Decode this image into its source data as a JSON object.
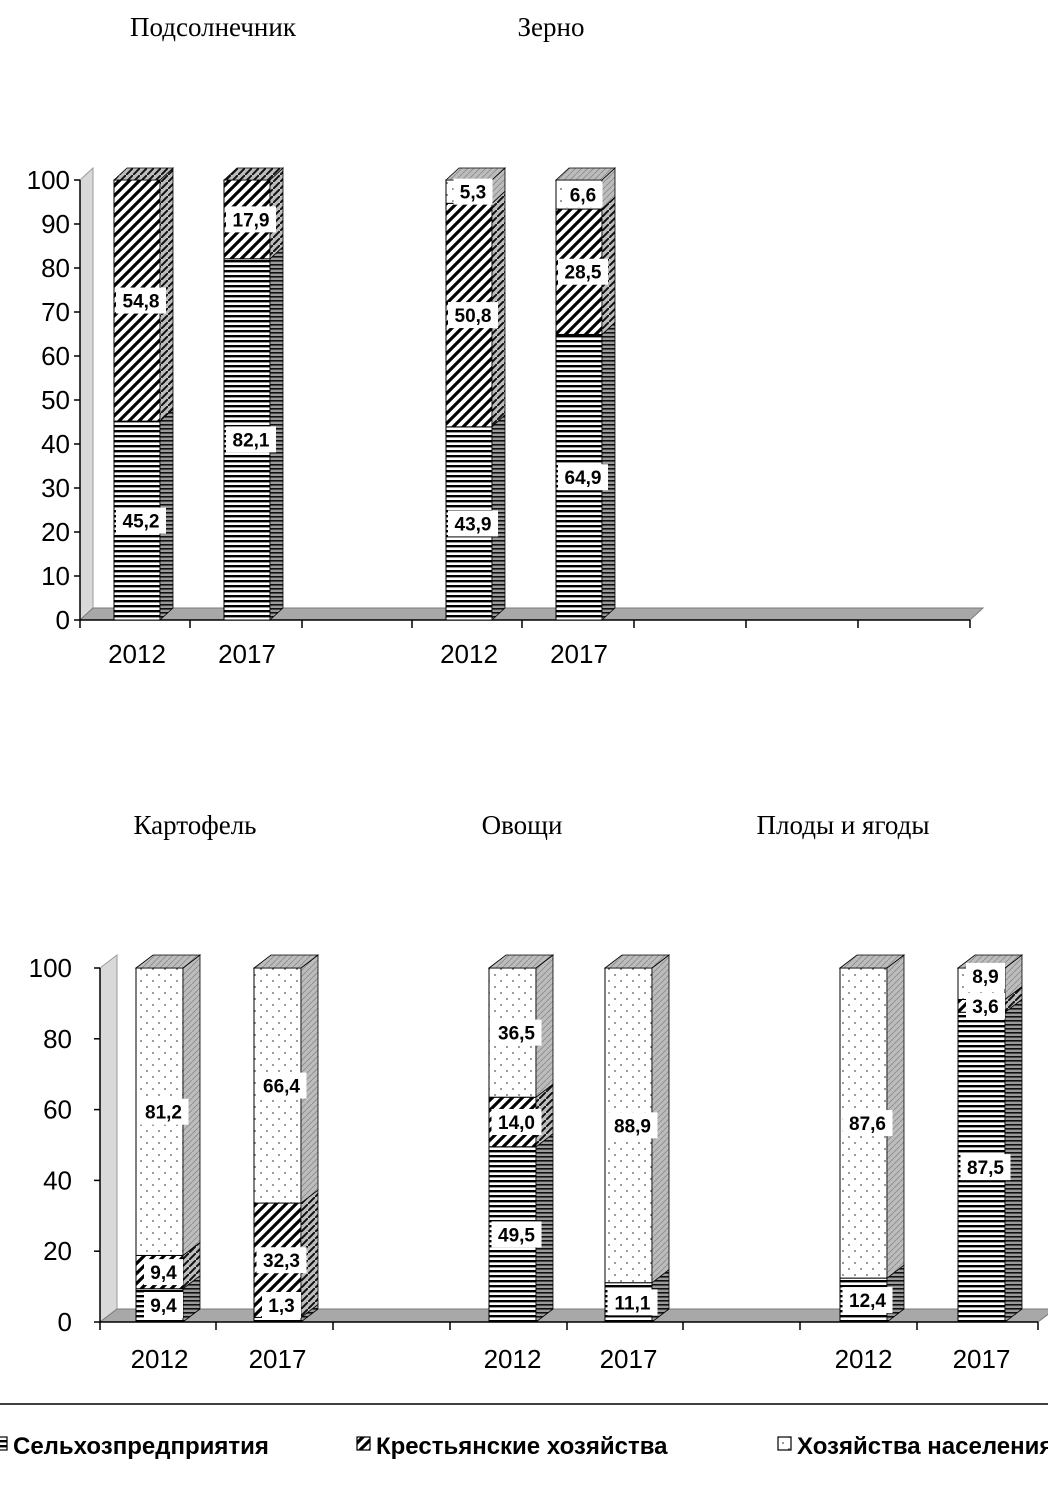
{
  "chart_data": {
    "type": "bar",
    "stacked": true,
    "three_d": true,
    "legend_position": "bottom",
    "legend": [
      {
        "name": "Сельхозпредприятия",
        "pattern": "horizontal-lines"
      },
      {
        "name": "Крестьянские хозяйства",
        "pattern": "diagonal-hatch"
      },
      {
        "name": "Хозяйства населения",
        "pattern": "dots"
      }
    ],
    "panels": [
      {
        "ylim": [
          0,
          100
        ],
        "yticks": [
          "0",
          "10",
          "20",
          "30",
          "40",
          "50",
          "60",
          "70",
          "80",
          "90",
          "100"
        ],
        "groups": [
          {
            "title": "Подсолнечник",
            "bars": [
              {
                "year": "2012",
                "segments": [
                  {
                    "series": "Сельхозпредприятия",
                    "value": 45.2,
                    "label": "45,2"
                  },
                  {
                    "series": "Крестьянские хозяйства",
                    "value": 54.8,
                    "label": "54,8"
                  },
                  {
                    "series": "Хозяйства населения",
                    "value": 0,
                    "label": ""
                  }
                ]
              },
              {
                "year": "2017",
                "segments": [
                  {
                    "series": "Сельхозпредприятия",
                    "value": 82.1,
                    "label": "82,1"
                  },
                  {
                    "series": "Крестьянские хозяйства",
                    "value": 17.9,
                    "label": "17,9"
                  },
                  {
                    "series": "Хозяйства населения",
                    "value": 0,
                    "label": ""
                  }
                ]
              }
            ]
          },
          {
            "title": "Зерно",
            "bars": [
              {
                "year": "2012",
                "segments": [
                  {
                    "series": "Сельхозпредприятия",
                    "value": 43.9,
                    "label": "43,9"
                  },
                  {
                    "series": "Крестьянские хозяйства",
                    "value": 50.8,
                    "label": "50,8"
                  },
                  {
                    "series": "Хозяйства населения",
                    "value": 5.3,
                    "label": "5,3"
                  }
                ]
              },
              {
                "year": "2017",
                "segments": [
                  {
                    "series": "Сельхозпредприятия",
                    "value": 64.9,
                    "label": "64,9"
                  },
                  {
                    "series": "Крестьянские хозяйства",
                    "value": 28.5,
                    "label": "28,5"
                  },
                  {
                    "series": "Хозяйства населения",
                    "value": 6.6,
                    "label": "6,6"
                  }
                ]
              }
            ]
          },
          {
            "title": "",
            "bars": [
              {
                "year": "",
                "segments": []
              },
              {
                "year": "",
                "segments": []
              }
            ]
          }
        ]
      },
      {
        "ylim": [
          0,
          100
        ],
        "yticks": [
          "0",
          "20",
          "40",
          "60",
          "80",
          "100"
        ],
        "groups": [
          {
            "title": "Картофель",
            "bars": [
              {
                "year": "2012",
                "segments": [
                  {
                    "series": "Сельхозпредприятия",
                    "value": 9.4,
                    "label": "9,4"
                  },
                  {
                    "series": "Крестьянские хозяйства",
                    "value": 9.4,
                    "label": "9,4"
                  },
                  {
                    "series": "Хозяйства населения",
                    "value": 81.2,
                    "label": "81,2"
                  }
                ]
              },
              {
                "year": "2017",
                "segments": [
                  {
                    "series": "Сельхозпредприятия",
                    "value": 1.3,
                    "label": "1,3"
                  },
                  {
                    "series": "Крестьянские хозяйства",
                    "value": 32.3,
                    "label": "32,3"
                  },
                  {
                    "series": "Хозяйства населения",
                    "value": 66.4,
                    "label": "66,4"
                  }
                ]
              }
            ]
          },
          {
            "title": "Овощи",
            "bars": [
              {
                "year": "2012",
                "segments": [
                  {
                    "series": "Сельхозпредприятия",
                    "value": 49.5,
                    "label": "49,5"
                  },
                  {
                    "series": "Крестьянские хозяйства",
                    "value": 14.0,
                    "label": "14,0"
                  },
                  {
                    "series": "Хозяйства населения",
                    "value": 36.5,
                    "label": "36,5"
                  }
                ]
              },
              {
                "year": "2017",
                "segments": [
                  {
                    "series": "Сельхозпредприятия",
                    "value": 11.1,
                    "label": "11,1"
                  },
                  {
                    "series": "Крестьянские хозяйства",
                    "value": 0,
                    "label": ""
                  },
                  {
                    "series": "Хозяйства населения",
                    "value": 88.9,
                    "label": "88,9"
                  }
                ]
              }
            ]
          },
          {
            "title": "Плоды и ягоды",
            "bars": [
              {
                "year": "2012",
                "segments": [
                  {
                    "series": "Сельхозпредприятия",
                    "value": 12.4,
                    "label": "12,4"
                  },
                  {
                    "series": "Крестьянские хозяйства",
                    "value": 0,
                    "label": ""
                  },
                  {
                    "series": "Хозяйства населения",
                    "value": 87.6,
                    "label": "87,6"
                  }
                ]
              },
              {
                "year": "2017",
                "segments": [
                  {
                    "series": "Сельхозпредприятия",
                    "value": 87.5,
                    "label": "87,5"
                  },
                  {
                    "series": "Крестьянские хозяйства",
                    "value": 3.6,
                    "label": "3,6"
                  },
                  {
                    "series": "Хозяйства населения",
                    "value": 8.9,
                    "label": "8,9"
                  }
                ]
              }
            ]
          }
        ]
      }
    ]
  }
}
